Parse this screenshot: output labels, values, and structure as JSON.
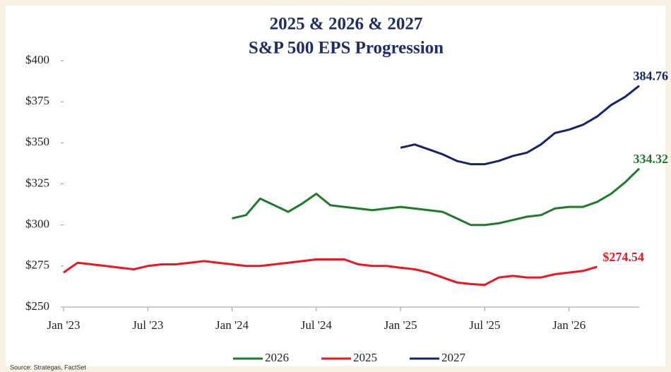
{
  "chart_data": {
    "type": "line",
    "title": "2025 & 2026 & 2027",
    "subtitle": "S&P 500 EPS Progression",
    "source": "Source: Strategas, FactSet",
    "xlim": [
      "2023-01",
      "2026-06"
    ],
    "xticks": [
      {
        "value": "2023-01",
        "label": "Jan '23"
      },
      {
        "value": "2023-07",
        "label": "Jul '23"
      },
      {
        "value": "2024-01",
        "label": "Jan '24"
      },
      {
        "value": "2024-07",
        "label": "Jul '24"
      },
      {
        "value": "2025-01",
        "label": "Jan '25"
      },
      {
        "value": "2025-07",
        "label": "Jul '25"
      },
      {
        "value": "2026-01",
        "label": "Jan '26"
      }
    ],
    "ylim": [
      250,
      400
    ],
    "yticks": [
      {
        "value": 250,
        "label": "$250"
      },
      {
        "value": 275,
        "label": "$275"
      },
      {
        "value": 300,
        "label": "$300"
      },
      {
        "value": 325,
        "label": "$325"
      },
      {
        "value": 350,
        "label": "$350"
      },
      {
        "value": 375,
        "label": "$375"
      },
      {
        "value": 400,
        "label": "$400"
      }
    ],
    "series": [
      {
        "name": "2026",
        "color": "#1e7b2a",
        "x": [
          "2024-01",
          "2024-02",
          "2024-03",
          "2024-04",
          "2024-05",
          "2024-06",
          "2024-07",
          "2024-08",
          "2024-09",
          "2024-10",
          "2024-11",
          "2024-12",
          "2025-01",
          "2025-02",
          "2025-03",
          "2025-04",
          "2025-05",
          "2025-06",
          "2025-07",
          "2025-08",
          "2025-09",
          "2025-10",
          "2025-11",
          "2025-12",
          "2026-01",
          "2026-02",
          "2026-03",
          "2026-04",
          "2026-05",
          "2026-06"
        ],
        "values": [
          304,
          306,
          316,
          312,
          308,
          313,
          319,
          312,
          311,
          310,
          309,
          310,
          311,
          310,
          309,
          308,
          304,
          300,
          300,
          301,
          303,
          305,
          306,
          310,
          311,
          311,
          314,
          319,
          326,
          334.32
        ]
      },
      {
        "name": "2025",
        "color": "#f0141e",
        "x": [
          "2023-01",
          "2023-02",
          "2023-03",
          "2023-04",
          "2023-05",
          "2023-06",
          "2023-07",
          "2023-08",
          "2023-09",
          "2023-10",
          "2023-11",
          "2023-12",
          "2024-01",
          "2024-02",
          "2024-03",
          "2024-04",
          "2024-05",
          "2024-06",
          "2024-07",
          "2024-08",
          "2024-09",
          "2024-10",
          "2024-11",
          "2024-12",
          "2025-01",
          "2025-02",
          "2025-03",
          "2025-04",
          "2025-05",
          "2025-06",
          "2025-07",
          "2025-08",
          "2025-09",
          "2025-10",
          "2025-11",
          "2025-12",
          "2026-01",
          "2026-02",
          "2026-03"
        ],
        "values": [
          271,
          277,
          276,
          275,
          274,
          273,
          275,
          276,
          276,
          277,
          278,
          277,
          276,
          275,
          275,
          276,
          277,
          278,
          279,
          279,
          279,
          276,
          275,
          275,
          274,
          273,
          271,
          268,
          265,
          264,
          263.5,
          268,
          269,
          268,
          268,
          270,
          271,
          272,
          274.54
        ],
        "value_labels": [
          null,
          null,
          null,
          null,
          null,
          null,
          null,
          null,
          null,
          null,
          null,
          null,
          null,
          null,
          null,
          null,
          null,
          null,
          null,
          null,
          null,
          null,
          null,
          null,
          null,
          null,
          null,
          null,
          null,
          null,
          null,
          null,
          null,
          null,
          null,
          null,
          null,
          null,
          "$274.54"
        ]
      },
      {
        "name": "2027",
        "color": "#14246b",
        "x": [
          "2025-01",
          "2025-02",
          "2025-03",
          "2025-04",
          "2025-05",
          "2025-06",
          "2025-07",
          "2025-08",
          "2025-09",
          "2025-10",
          "2025-11",
          "2025-12",
          "2026-01",
          "2026-02",
          "2026-03",
          "2026-04",
          "2026-05",
          "2026-06"
        ],
        "values": [
          347,
          349,
          346,
          343,
          339,
          337,
          337,
          339,
          342,
          344,
          349,
          356,
          358,
          361,
          366,
          373,
          378,
          384.76
        ]
      }
    ]
  }
}
